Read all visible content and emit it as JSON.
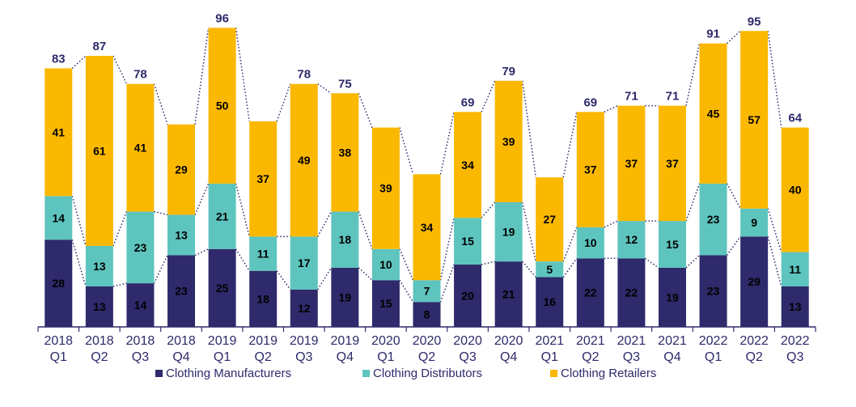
{
  "chart_data": {
    "type": "bar",
    "stacked": true,
    "categories": [
      [
        "2018",
        "Q1"
      ],
      [
        "2018",
        "Q2"
      ],
      [
        "2018",
        "Q3"
      ],
      [
        "2018",
        "Q4"
      ],
      [
        "2019",
        "Q1"
      ],
      [
        "2019",
        "Q2"
      ],
      [
        "2019",
        "Q3"
      ],
      [
        "2019",
        "Q4"
      ],
      [
        "2020",
        "Q1"
      ],
      [
        "2020",
        "Q2"
      ],
      [
        "2020",
        "Q3"
      ],
      [
        "2020",
        "Q4"
      ],
      [
        "2021",
        "Q1"
      ],
      [
        "2021",
        "Q2"
      ],
      [
        "2021",
        "Q3"
      ],
      [
        "2021",
        "Q4"
      ],
      [
        "2022",
        "Q1"
      ],
      [
        "2022",
        "Q2"
      ],
      [
        "2022",
        "Q3"
      ]
    ],
    "series": [
      {
        "name": "Clothing Manufacturers",
        "color": "#2e2a6b",
        "values": [
          28,
          13,
          14,
          23,
          25,
          18,
          12,
          19,
          15,
          8,
          20,
          21,
          16,
          22,
          22,
          19,
          23,
          29,
          13
        ]
      },
      {
        "name": "Clothing Distributors",
        "color": "#5ec4be",
        "values": [
          14,
          13,
          23,
          13,
          21,
          11,
          17,
          18,
          10,
          7,
          15,
          19,
          5,
          10,
          12,
          15,
          23,
          9,
          11
        ]
      },
      {
        "name": "Clothing Retailers",
        "color": "#fbb800",
        "values": [
          41,
          61,
          41,
          29,
          50,
          37,
          49,
          38,
          39,
          34,
          34,
          39,
          27,
          37,
          37,
          37,
          45,
          57,
          40
        ]
      }
    ],
    "totals": [
      83,
      87,
      78,
      65,
      96,
      66,
      78,
      75,
      64,
      49,
      69,
      79,
      48,
      69,
      71,
      71,
      91,
      95,
      64
    ],
    "totals_shown": [
      true,
      true,
      true,
      false,
      true,
      false,
      true,
      true,
      false,
      false,
      true,
      true,
      false,
      true,
      true,
      true,
      true,
      true,
      true
    ],
    "ylim": [
      0,
      100
    ],
    "title": "",
    "xlabel": "",
    "ylabel": "",
    "grid": false,
    "legend_position": "bottom",
    "connector_lines": "dotted"
  }
}
